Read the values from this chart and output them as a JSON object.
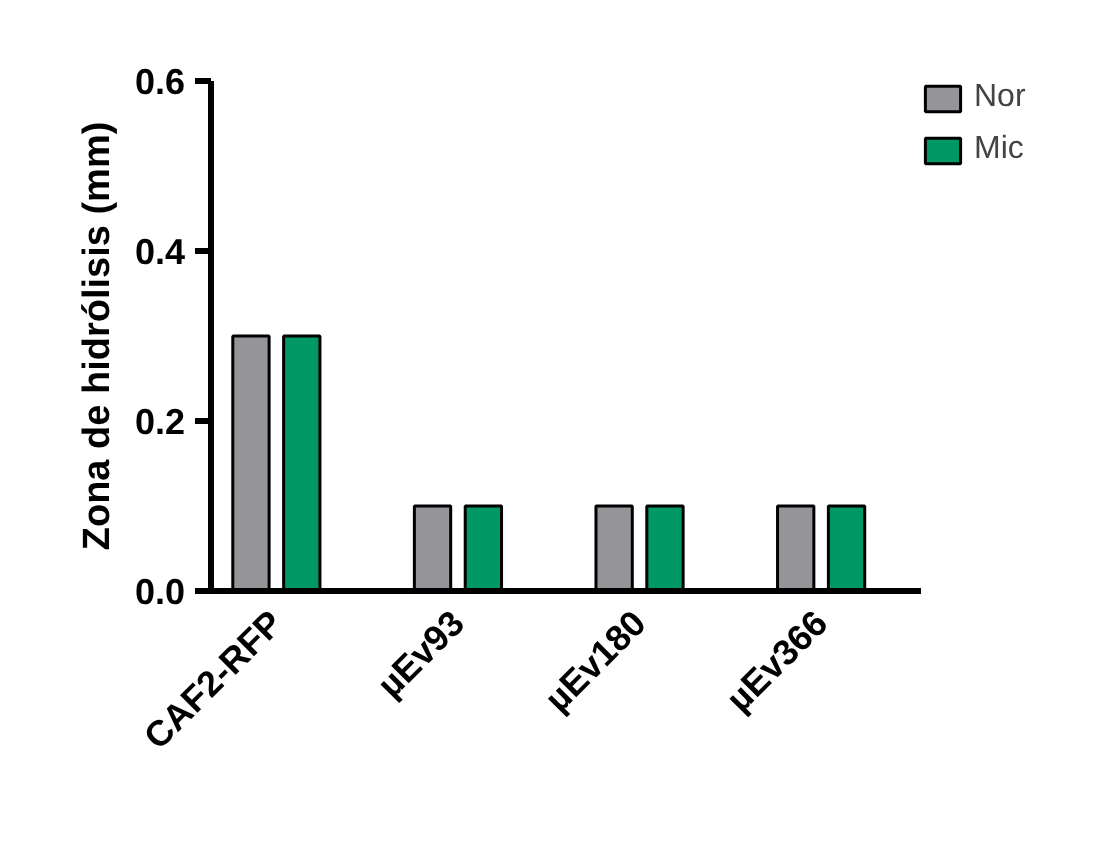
{
  "chart_data": {
    "type": "bar",
    "ylabel": "Zona de hidrólisis (mm)",
    "categories": [
      "CAF2-RFP",
      "µEv93",
      "µEv180",
      "µEv366"
    ],
    "series": [
      {
        "name": "Nor",
        "color": "#949499",
        "values": [
          0.3,
          0.1,
          0.1,
          0.1
        ]
      },
      {
        "name": "Mic",
        "color": "#009966",
        "values": [
          0.3,
          0.1,
          0.1,
          0.1
        ]
      }
    ],
    "ylim": [
      0,
      0.6
    ],
    "yticks": [
      {
        "value": 0,
        "label": "0.0"
      },
      {
        "value": 0.2,
        "label": "0.2"
      },
      {
        "value": 0.4,
        "label": "0.4"
      },
      {
        "value": 0.6,
        "label": "0.6"
      }
    ],
    "grid": false,
    "legend": "top right"
  }
}
